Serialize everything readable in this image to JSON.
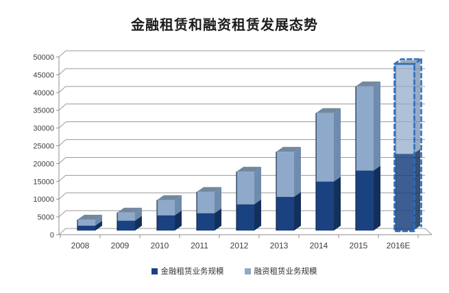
{
  "title": "金融租赁和融资租赁发展态势",
  "colors": {
    "series1_front": "#1B4280",
    "series1_side": "#13305C",
    "series2_front": "#8FA9CB",
    "series2_side": "#6F8BAD",
    "series2_cap": "#72889F",
    "bar_left_edge": "#0F2340",
    "forecast_outline": "#2E6FBF",
    "gridline": "#9A9A9A",
    "axis": "#8C8C8C",
    "tick_label": "#3D3D3D"
  },
  "chart_data": {
    "type": "bar",
    "stacked": true,
    "style": "3d-column",
    "title": "金融租赁和融资租赁发展态势",
    "categories": [
      "2008",
      "2009",
      "2010",
      "2011",
      "2012",
      "2013",
      "2014",
      "2015",
      "2016E"
    ],
    "series": [
      {
        "name": "金融租赁业务规模",
        "color": "#1B4280",
        "values": [
          800,
          2200,
          3700,
          4300,
          6800,
          8900,
          13200,
          16300,
          21000
        ]
      },
      {
        "name": "融资租赁业务规模",
        "color": "#8FA9CB",
        "values": [
          1700,
          2300,
          4300,
          6000,
          9200,
          12700,
          19300,
          23700,
          25000
        ]
      }
    ],
    "stack_totals": [
      2500,
      4500,
      8000,
      10300,
      16000,
      21600,
      32500,
      40000,
      46000
    ],
    "xlabel": "",
    "ylabel": "",
    "ylim": [
      0,
      50000
    ],
    "ytick_step": 5000,
    "ytick_labels": [
      "0",
      "5000",
      "10000",
      "15000",
      "20000",
      "25000",
      "30000",
      "35000",
      "40000",
      "45000",
      "50000"
    ],
    "grid": true,
    "legend_position": "bottom",
    "forecast_category": "2016E"
  },
  "legend": {
    "items": [
      {
        "label": "金融租赁业务规模",
        "color": "#1B4280"
      },
      {
        "label": "融资租赁业务规模",
        "color": "#8FA9CB"
      }
    ]
  }
}
